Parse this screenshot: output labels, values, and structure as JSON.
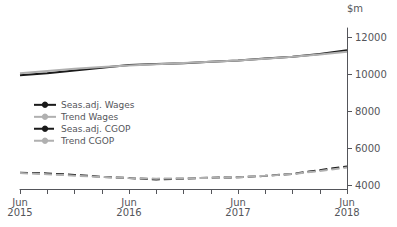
{
  "chart_data": {
    "type": "line",
    "y_label": "$m",
    "categories": [
      "Jun\n2015",
      null,
      null,
      null,
      "Jun\n2016",
      null,
      null,
      null,
      "Jun\n2017",
      null,
      null,
      null,
      "Jun\n2018"
    ],
    "series": [
      {
        "name": "Seas.adj. Wages",
        "color": "#1a1a1a",
        "line_style": "solid",
        "values": [
          9950,
          10050,
          10200,
          10350,
          10500,
          10550,
          10600,
          10680,
          10750,
          10850,
          10950,
          11100,
          11300
        ]
      },
      {
        "name": "Trend Wages",
        "color": "#b0b0b0",
        "line_style": "solid",
        "values": [
          10050,
          10180,
          10300,
          10390,
          10470,
          10540,
          10610,
          10680,
          10750,
          10840,
          10950,
          11070,
          11220
        ]
      },
      {
        "name": "Seas.adj. CGOP",
        "color": "#1a1a1a",
        "line_style": "dashed",
        "values": [
          4680,
          4640,
          4560,
          4460,
          4390,
          4320,
          4360,
          4410,
          4430,
          4510,
          4620,
          4820,
          5020
        ]
      },
      {
        "name": "Trend CGOP",
        "color": "#b0b0b0",
        "line_style": "dashed",
        "values": [
          4660,
          4600,
          4520,
          4450,
          4390,
          4360,
          4370,
          4400,
          4440,
          4510,
          4610,
          4770,
          4960
        ]
      }
    ],
    "ylim": [
      3800,
      12500
    ],
    "yticks": [
      4000,
      6000,
      8000,
      10000,
      12000
    ],
    "grid": false,
    "legend": "left"
  }
}
